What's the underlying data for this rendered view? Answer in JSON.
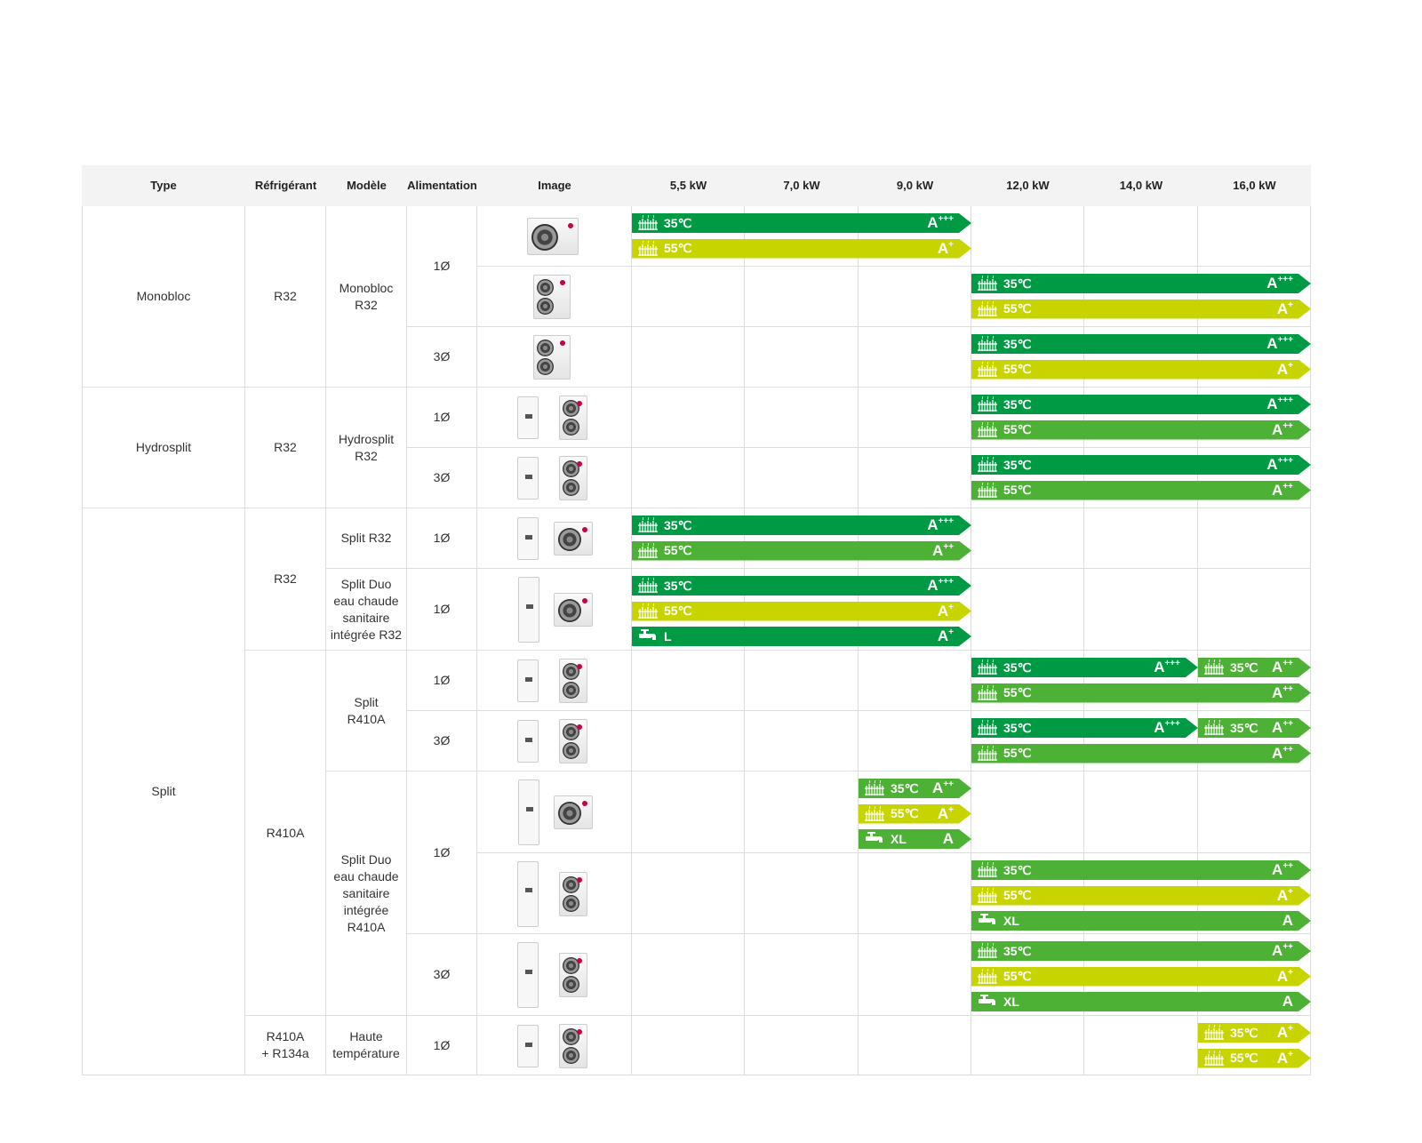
{
  "header": {
    "type": "Type",
    "refrigerant": "Réfrigérant",
    "model": "Modèle",
    "power": "Alimentation",
    "image": "Image",
    "kw": [
      "5,5 kW",
      "7,0 kW",
      "9,0 kW",
      "12,0 kW",
      "14,0 kW",
      "16,0 kW"
    ]
  },
  "colors": {
    "A+++": "#009a44",
    "A++": "#4cb135",
    "A+": "#c8d400",
    "A": "#4cb135",
    "L": "#009a44"
  },
  "types": [
    {
      "label": "Monobloc",
      "rows": 3
    },
    {
      "label": "Hydrosplit",
      "rows": 2
    },
    {
      "label": "Split",
      "rows": 8
    }
  ],
  "refrigerants": [
    {
      "label": "R32",
      "rows": 3
    },
    {
      "label": "R32",
      "rows": 2
    },
    {
      "label": "R32",
      "rows": 2
    },
    {
      "label": "R410A",
      "rows": 5
    },
    {
      "label": "R410A\n+ R134a",
      "rows": 1
    }
  ],
  "models": [
    {
      "label": "Monobloc\nR32",
      "rows": 3
    },
    {
      "label": "Hydrosplit\nR32",
      "rows": 2
    },
    {
      "label": "Split R32",
      "rows": 1
    },
    {
      "label": "Split Duo\neau chaude\nsanitaire\nintégrée R32",
      "rows": 1
    },
    {
      "label": "Split\nR410A",
      "rows": 2
    },
    {
      "label": "Split Duo\neau chaude\nsanitaire\nintégrée\nR410A",
      "rows": 3
    },
    {
      "label": "Haute\ntempérature",
      "rows": 1
    }
  ],
  "power": [
    {
      "label": "1Ø",
      "rows": 2
    },
    {
      "label": "3Ø",
      "rows": 1
    },
    {
      "label": "1Ø",
      "rows": 1
    },
    {
      "label": "3Ø",
      "rows": 1
    },
    {
      "label": "1Ø",
      "rows": 1
    },
    {
      "label": "1Ø",
      "rows": 1
    },
    {
      "label": "1Ø",
      "rows": 1
    },
    {
      "label": "3Ø",
      "rows": 1
    },
    {
      "label": "1Ø",
      "rows": 2
    },
    {
      "label": "3Ø",
      "rows": 1
    },
    {
      "label": "1Ø",
      "rows": 1
    }
  ],
  "products": [
    {
      "image": "monobloc-1fan",
      "bars": [
        {
          "from": 0,
          "to": 2,
          "icon": "radiator",
          "label": "35℃",
          "grade": "A",
          "plus": "+++",
          "color": "A+++"
        },
        {
          "from": 0,
          "to": 2,
          "icon": "radiator",
          "label": "55℃",
          "grade": "A",
          "plus": "+",
          "color": "A+"
        }
      ]
    },
    {
      "image": "outdoor-2fan",
      "bars": [
        {
          "from": 3,
          "to": 5,
          "icon": "radiator",
          "label": "35℃",
          "grade": "A",
          "plus": "+++",
          "color": "A+++"
        },
        {
          "from": 3,
          "to": 5,
          "icon": "radiator",
          "label": "55℃",
          "grade": "A",
          "plus": "+",
          "color": "A+"
        }
      ]
    },
    {
      "image": "outdoor-2fan",
      "bars": [
        {
          "from": 3,
          "to": 5,
          "icon": "radiator",
          "label": "35℃",
          "grade": "A",
          "plus": "+++",
          "color": "A+++"
        },
        {
          "from": 3,
          "to": 5,
          "icon": "radiator",
          "label": "55℃",
          "grade": "A",
          "plus": "+",
          "color": "A+"
        }
      ]
    },
    {
      "image": "indoor-outdoor2",
      "bars": [
        {
          "from": 3,
          "to": 5,
          "icon": "radiator",
          "label": "35℃",
          "grade": "A",
          "plus": "+++",
          "color": "A+++"
        },
        {
          "from": 3,
          "to": 5,
          "icon": "radiator",
          "label": "55℃",
          "grade": "A",
          "plus": "++",
          "color": "A++"
        }
      ]
    },
    {
      "image": "indoor-outdoor2",
      "bars": [
        {
          "from": 3,
          "to": 5,
          "icon": "radiator",
          "label": "35℃",
          "grade": "A",
          "plus": "+++",
          "color": "A+++"
        },
        {
          "from": 3,
          "to": 5,
          "icon": "radiator",
          "label": "55℃",
          "grade": "A",
          "plus": "++",
          "color": "A++"
        }
      ]
    },
    {
      "image": "indoor-outdoor1",
      "bars": [
        {
          "from": 0,
          "to": 2,
          "icon": "radiator",
          "label": "35℃",
          "grade": "A",
          "plus": "+++",
          "color": "A+++"
        },
        {
          "from": 0,
          "to": 2,
          "icon": "radiator",
          "label": "55℃",
          "grade": "A",
          "plus": "++",
          "color": "A++"
        }
      ]
    },
    {
      "image": "tall-outdoor1",
      "bars": [
        {
          "from": 0,
          "to": 2,
          "icon": "radiator",
          "label": "35℃",
          "grade": "A",
          "plus": "+++",
          "color": "A+++"
        },
        {
          "from": 0,
          "to": 2,
          "icon": "radiator",
          "label": "55℃",
          "grade": "A",
          "plus": "+",
          "color": "A+"
        },
        {
          "from": 0,
          "to": 2,
          "icon": "tap",
          "label": "L",
          "grade": "A",
          "plus": "+",
          "color": "L"
        }
      ]
    },
    {
      "image": "indoor-outdoor2",
      "bars": [
        {
          "from": 3,
          "to": 4,
          "line": 0,
          "icon": "radiator",
          "label": "35℃",
          "grade": "A",
          "plus": "+++",
          "color": "A+++"
        },
        {
          "from": 5,
          "to": 5,
          "line": 0,
          "icon": "radiator",
          "label": "35℃",
          "grade": "A",
          "plus": "++",
          "color": "A++"
        },
        {
          "from": 3,
          "to": 5,
          "line": 1,
          "icon": "radiator",
          "label": "55℃",
          "grade": "A",
          "plus": "++",
          "color": "A++"
        }
      ]
    },
    {
      "image": "indoor-outdoor2",
      "bars": [
        {
          "from": 3,
          "to": 4,
          "line": 0,
          "icon": "radiator",
          "label": "35℃",
          "grade": "A",
          "plus": "+++",
          "color": "A+++"
        },
        {
          "from": 5,
          "to": 5,
          "line": 0,
          "icon": "radiator",
          "label": "35℃",
          "grade": "A",
          "plus": "++",
          "color": "A++"
        },
        {
          "from": 3,
          "to": 5,
          "line": 1,
          "icon": "radiator",
          "label": "55℃",
          "grade": "A",
          "plus": "++",
          "color": "A++"
        }
      ]
    },
    {
      "image": "tall-outdoor1",
      "bars": [
        {
          "from": 2,
          "to": 2,
          "icon": "radiator",
          "label": "35℃",
          "grade": "A",
          "plus": "++",
          "color": "A++"
        },
        {
          "from": 2,
          "to": 2,
          "icon": "radiator",
          "label": "55℃",
          "grade": "A",
          "plus": "+",
          "color": "A+"
        },
        {
          "from": 2,
          "to": 2,
          "icon": "tap",
          "label": "XL",
          "grade": "A",
          "plus": "",
          "color": "A"
        }
      ]
    },
    {
      "image": "tall-outdoor2",
      "bars": [
        {
          "from": 3,
          "to": 5,
          "icon": "radiator",
          "label": "35℃",
          "grade": "A",
          "plus": "++",
          "color": "A++"
        },
        {
          "from": 3,
          "to": 5,
          "icon": "radiator",
          "label": "55℃",
          "grade": "A",
          "plus": "+",
          "color": "A+"
        },
        {
          "from": 3,
          "to": 5,
          "icon": "tap",
          "label": "XL",
          "grade": "A",
          "plus": "",
          "color": "A"
        }
      ]
    },
    {
      "image": "tall-outdoor2",
      "bars": [
        {
          "from": 3,
          "to": 5,
          "icon": "radiator",
          "label": "35℃",
          "grade": "A",
          "plus": "++",
          "color": "A++"
        },
        {
          "from": 3,
          "to": 5,
          "icon": "radiator",
          "label": "55℃",
          "grade": "A",
          "plus": "+",
          "color": "A+"
        },
        {
          "from": 3,
          "to": 5,
          "icon": "tap",
          "label": "XL",
          "grade": "A",
          "plus": "",
          "color": "A"
        }
      ]
    },
    {
      "image": "indoor-outdoor2",
      "bars": [
        {
          "from": 5,
          "to": 5,
          "icon": "radiator",
          "label": "35℃",
          "grade": "A",
          "plus": "+",
          "color": "A+"
        },
        {
          "from": 5,
          "to": 5,
          "icon": "radiator",
          "label": "55℃",
          "grade": "A",
          "plus": "+",
          "color": "A+"
        }
      ]
    }
  ]
}
